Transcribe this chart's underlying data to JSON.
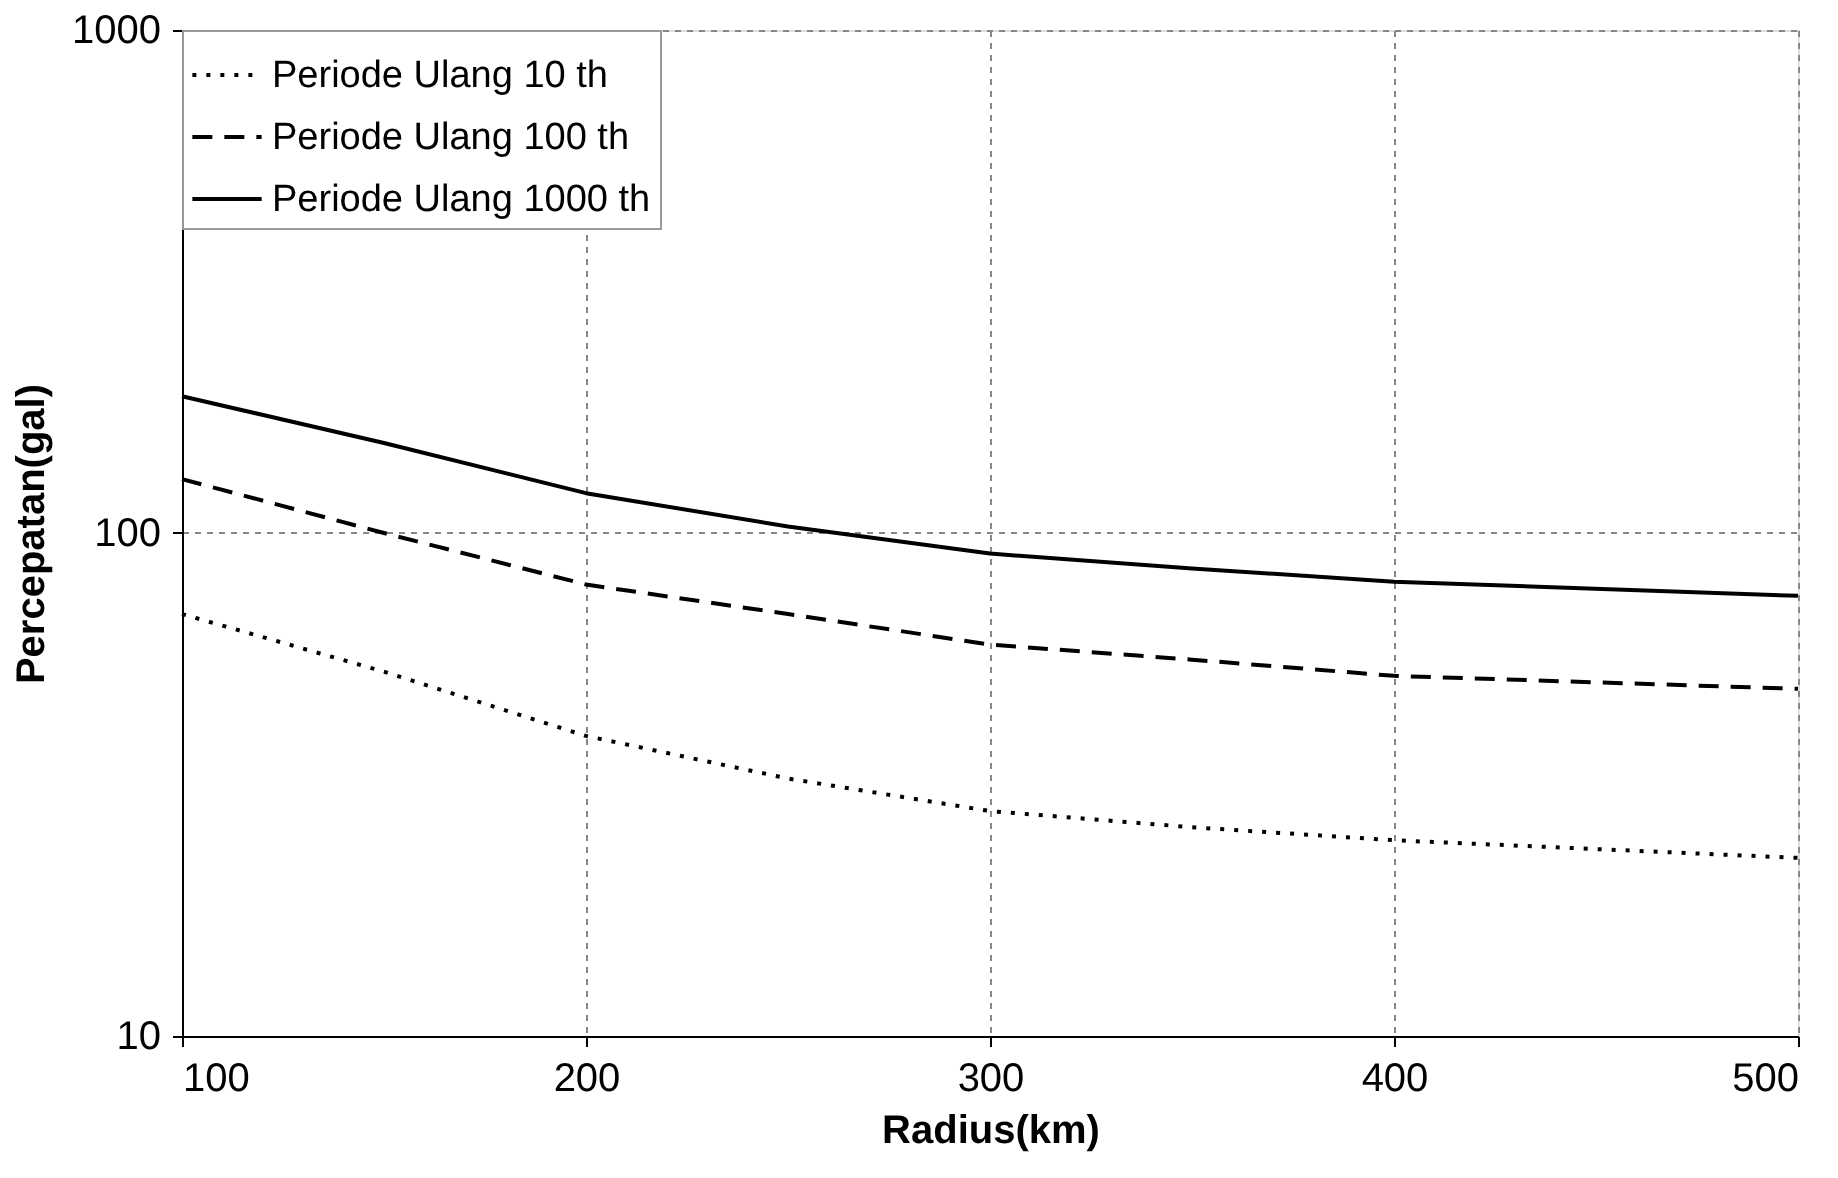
{
  "chart_data": {
    "type": "line",
    "xlabel": "Radius(km)",
    "ylabel": "Percepatan(gal)",
    "x": [
      100,
      150,
      200,
      250,
      300,
      350,
      400,
      500
    ],
    "series": [
      {
        "name": "Periode Ulang 10 th",
        "color": "#000000",
        "line_style": "dotted",
        "values": [
          69,
          53,
          39.5,
          32.5,
          28,
          26,
          24.5,
          22.6
        ]
      },
      {
        "name": "Periode Ulang 100 th",
        "color": "#000000",
        "line_style": "dashed",
        "values": [
          128,
          100,
          79,
          69,
          60,
          56,
          52,
          49
        ]
      },
      {
        "name": "Periode Ulang 1000 th",
        "color": "#000000",
        "line_style": "solid",
        "values": [
          187,
          151,
          120,
          103,
          91,
          85,
          80,
          75
        ]
      }
    ],
    "log": "y",
    "xlim": [
      100,
      500
    ],
    "ylim": [
      10,
      1000
    ],
    "xticks": [
      100,
      200,
      300,
      400,
      500
    ],
    "yticks": [
      10,
      100,
      1000
    ],
    "grid": true,
    "legend": "top left",
    "marker": "none"
  }
}
